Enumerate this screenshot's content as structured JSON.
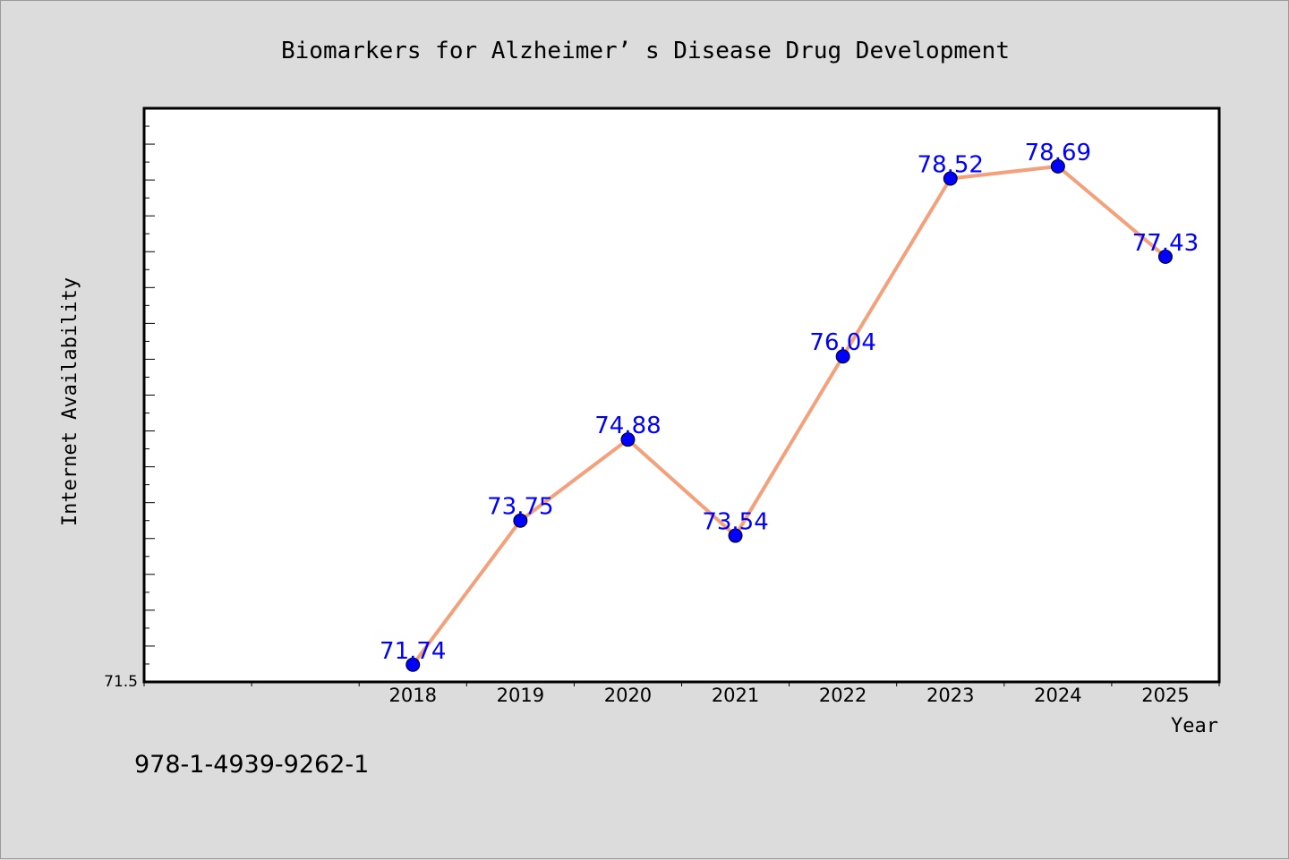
{
  "chart_data": {
    "type": "line",
    "title": "Biomarkers for Alzheimer’ s Disease Drug Development",
    "xlabel": "Year",
    "ylabel": "Internet Availability",
    "categories": [
      "2018",
      "2019",
      "2020",
      "2021",
      "2022",
      "2023",
      "2024",
      "2025"
    ],
    "series": [
      {
        "values": [
          71.74,
          73.75,
          74.88,
          73.54,
          76.04,
          78.52,
          78.69,
          77.43
        ],
        "labels": [
          "71.74",
          "73.75",
          "74.88",
          "73.54",
          "76.04",
          "78.52",
          "78.69",
          "77.43"
        ]
      }
    ],
    "ylim": [
      71.5,
      79.5
    ],
    "ytick_labels": [
      "71.5"
    ],
    "x_positions": [
      2.5,
      3.5,
      4.5,
      5.5,
      6.5,
      7.5,
      8.5,
      9.5
    ],
    "xlim": [
      0,
      10
    ],
    "grid": false,
    "colors": {
      "line": "#f4a07a",
      "marker": "#0000ff",
      "label": "#0000ff"
    }
  },
  "footer": {
    "isbn": "978-1-4939-9262-1"
  }
}
